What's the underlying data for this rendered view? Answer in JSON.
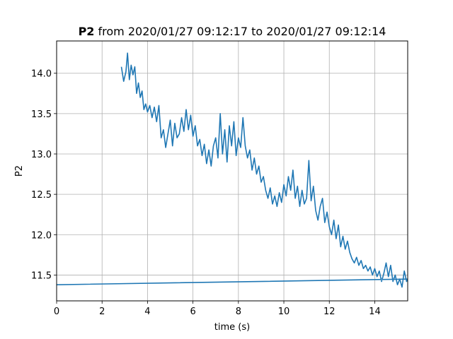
{
  "chart_data": {
    "type": "line",
    "title_bold": "P2",
    "title_rest": " from 2020/01/27 09:12:17 to 2020/01/27 09:12:14",
    "xlabel": "time (s)",
    "ylabel": "P2",
    "xlim": [
      0,
      15.45
    ],
    "ylim": [
      11.18,
      14.4
    ],
    "xticks": [
      0,
      2,
      4,
      6,
      8,
      10,
      12,
      14
    ],
    "yticks": [
      11.5,
      12.0,
      12.5,
      13.0,
      13.5,
      14.0
    ],
    "xtick_labels": [
      "0",
      "2",
      "4",
      "6",
      "8",
      "10",
      "12",
      "14"
    ],
    "ytick_labels": [
      "11.5",
      "12.0",
      "12.5",
      "13.0",
      "13.5",
      "14.0"
    ],
    "grid": true,
    "line_color": "#1f77b4",
    "series": [
      {
        "x": [
          2.85,
          2.95,
          3.05,
          3.12,
          3.2,
          3.28,
          3.36,
          3.44,
          3.52,
          3.6,
          3.68,
          3.76,
          3.84,
          3.92,
          4.0,
          4.1,
          4.2,
          4.3,
          4.4,
          4.5,
          4.6,
          4.7,
          4.8,
          4.9,
          5.0,
          5.1,
          5.2,
          5.3,
          5.4,
          5.5,
          5.6,
          5.7,
          5.8,
          5.9,
          6.0,
          6.1,
          6.2,
          6.3,
          6.4,
          6.5,
          6.6,
          6.7,
          6.8,
          6.9,
          7.0,
          7.1,
          7.2,
          7.3,
          7.4,
          7.5,
          7.6,
          7.7,
          7.8,
          7.9,
          8.0,
          8.1,
          8.2,
          8.3,
          8.4,
          8.5,
          8.6,
          8.7,
          8.8,
          8.9,
          9.0,
          9.1,
          9.2,
          9.3,
          9.4,
          9.5,
          9.6,
          9.7,
          9.8,
          9.9,
          10.0,
          10.1,
          10.2,
          10.3,
          10.4,
          10.5,
          10.6,
          10.7,
          10.8,
          10.9,
          11.0,
          11.1,
          11.2,
          11.3,
          11.4,
          11.5,
          11.6,
          11.7,
          11.8,
          11.9,
          12.0,
          12.1,
          12.2,
          12.3,
          12.4,
          12.5,
          12.6,
          12.7,
          12.8,
          12.9,
          13.0,
          13.1,
          13.2,
          13.3,
          13.4,
          13.5,
          13.6,
          13.7,
          13.8,
          13.9,
          14.0,
          14.1,
          14.2,
          14.3,
          14.4,
          14.5,
          14.6,
          14.7,
          14.8,
          14.9,
          15.0,
          15.1,
          15.2,
          15.3,
          15.4,
          15.45,
          0.0
        ],
        "y": [
          14.08,
          13.9,
          14.02,
          14.25,
          13.92,
          14.1,
          13.98,
          14.08,
          13.75,
          13.88,
          13.7,
          13.78,
          13.55,
          13.62,
          13.52,
          13.6,
          13.45,
          13.58,
          13.4,
          13.6,
          13.2,
          13.3,
          13.08,
          13.25,
          13.42,
          13.1,
          13.38,
          13.2,
          13.25,
          13.45,
          13.28,
          13.55,
          13.3,
          13.48,
          13.22,
          13.35,
          13.1,
          13.18,
          12.98,
          13.12,
          12.88,
          13.05,
          12.85,
          13.1,
          13.2,
          12.95,
          13.5,
          13.0,
          13.3,
          12.9,
          13.35,
          13.1,
          13.4,
          12.98,
          13.2,
          13.08,
          13.45,
          13.1,
          12.95,
          13.05,
          12.8,
          12.95,
          12.75,
          12.85,
          12.65,
          12.72,
          12.55,
          12.45,
          12.58,
          12.38,
          12.48,
          12.35,
          12.52,
          12.4,
          12.62,
          12.48,
          12.72,
          12.55,
          12.8,
          12.45,
          12.6,
          12.35,
          12.55,
          12.38,
          12.45,
          12.92,
          12.42,
          12.6,
          12.3,
          12.18,
          12.35,
          12.45,
          12.15,
          12.28,
          12.1,
          12.0,
          12.18,
          11.95,
          12.12,
          11.85,
          11.98,
          11.82,
          11.92,
          11.78,
          11.7,
          11.65,
          11.72,
          11.62,
          11.68,
          11.58,
          11.62,
          11.55,
          11.6,
          11.5,
          11.58,
          11.48,
          11.55,
          11.42,
          11.52,
          11.65,
          11.48,
          11.62,
          11.42,
          11.5,
          11.38,
          11.45,
          11.35,
          11.55,
          11.42,
          11.45,
          11.38
        ]
      }
    ]
  }
}
